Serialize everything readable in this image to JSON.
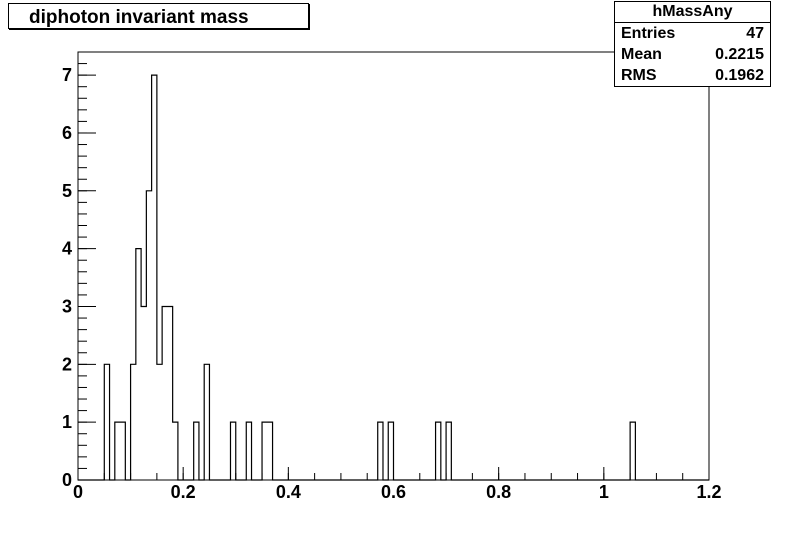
{
  "title": "diphoton invariant mass",
  "stats": {
    "name": "hMassAny",
    "rows": [
      {
        "label": "Entries",
        "value": "47"
      },
      {
        "label": "Mean",
        "value": "0.2215"
      },
      {
        "label": "RMS",
        "value": "0.1962"
      }
    ]
  },
  "chart_data": {
    "type": "bar",
    "title": "diphoton invariant mass",
    "xlabel": "",
    "ylabel": "",
    "xlim": [
      0,
      1.2
    ],
    "ylim": [
      0,
      7.4
    ],
    "bin_width": 0.01,
    "x_ticks": [
      0,
      0.2,
      0.4,
      0.6,
      0.8,
      1,
      1.2
    ],
    "x_tick_labels": [
      "0",
      "0.2",
      "0.4",
      "0.6",
      "0.8",
      "1",
      "1.2"
    ],
    "y_ticks": [
      0,
      1,
      2,
      3,
      4,
      5,
      6,
      7
    ],
    "y_tick_labels": [
      "0",
      "1",
      "2",
      "3",
      "4",
      "5",
      "6",
      "7"
    ],
    "grid": false,
    "bins": [
      {
        "x": 0.05,
        "count": 2
      },
      {
        "x": 0.07,
        "count": 1
      },
      {
        "x": 0.08,
        "count": 1
      },
      {
        "x": 0.1,
        "count": 2
      },
      {
        "x": 0.11,
        "count": 4
      },
      {
        "x": 0.12,
        "count": 3
      },
      {
        "x": 0.13,
        "count": 5
      },
      {
        "x": 0.14,
        "count": 7
      },
      {
        "x": 0.15,
        "count": 2
      },
      {
        "x": 0.16,
        "count": 3
      },
      {
        "x": 0.17,
        "count": 3
      },
      {
        "x": 0.18,
        "count": 1
      },
      {
        "x": 0.22,
        "count": 1
      },
      {
        "x": 0.24,
        "count": 2
      },
      {
        "x": 0.29,
        "count": 1
      },
      {
        "x": 0.32,
        "count": 1
      },
      {
        "x": 0.35,
        "count": 1
      },
      {
        "x": 0.36,
        "count": 1
      },
      {
        "x": 0.57,
        "count": 1
      },
      {
        "x": 0.59,
        "count": 1
      },
      {
        "x": 0.68,
        "count": 1
      },
      {
        "x": 0.7,
        "count": 1
      },
      {
        "x": 1.05,
        "count": 1
      }
    ]
  }
}
